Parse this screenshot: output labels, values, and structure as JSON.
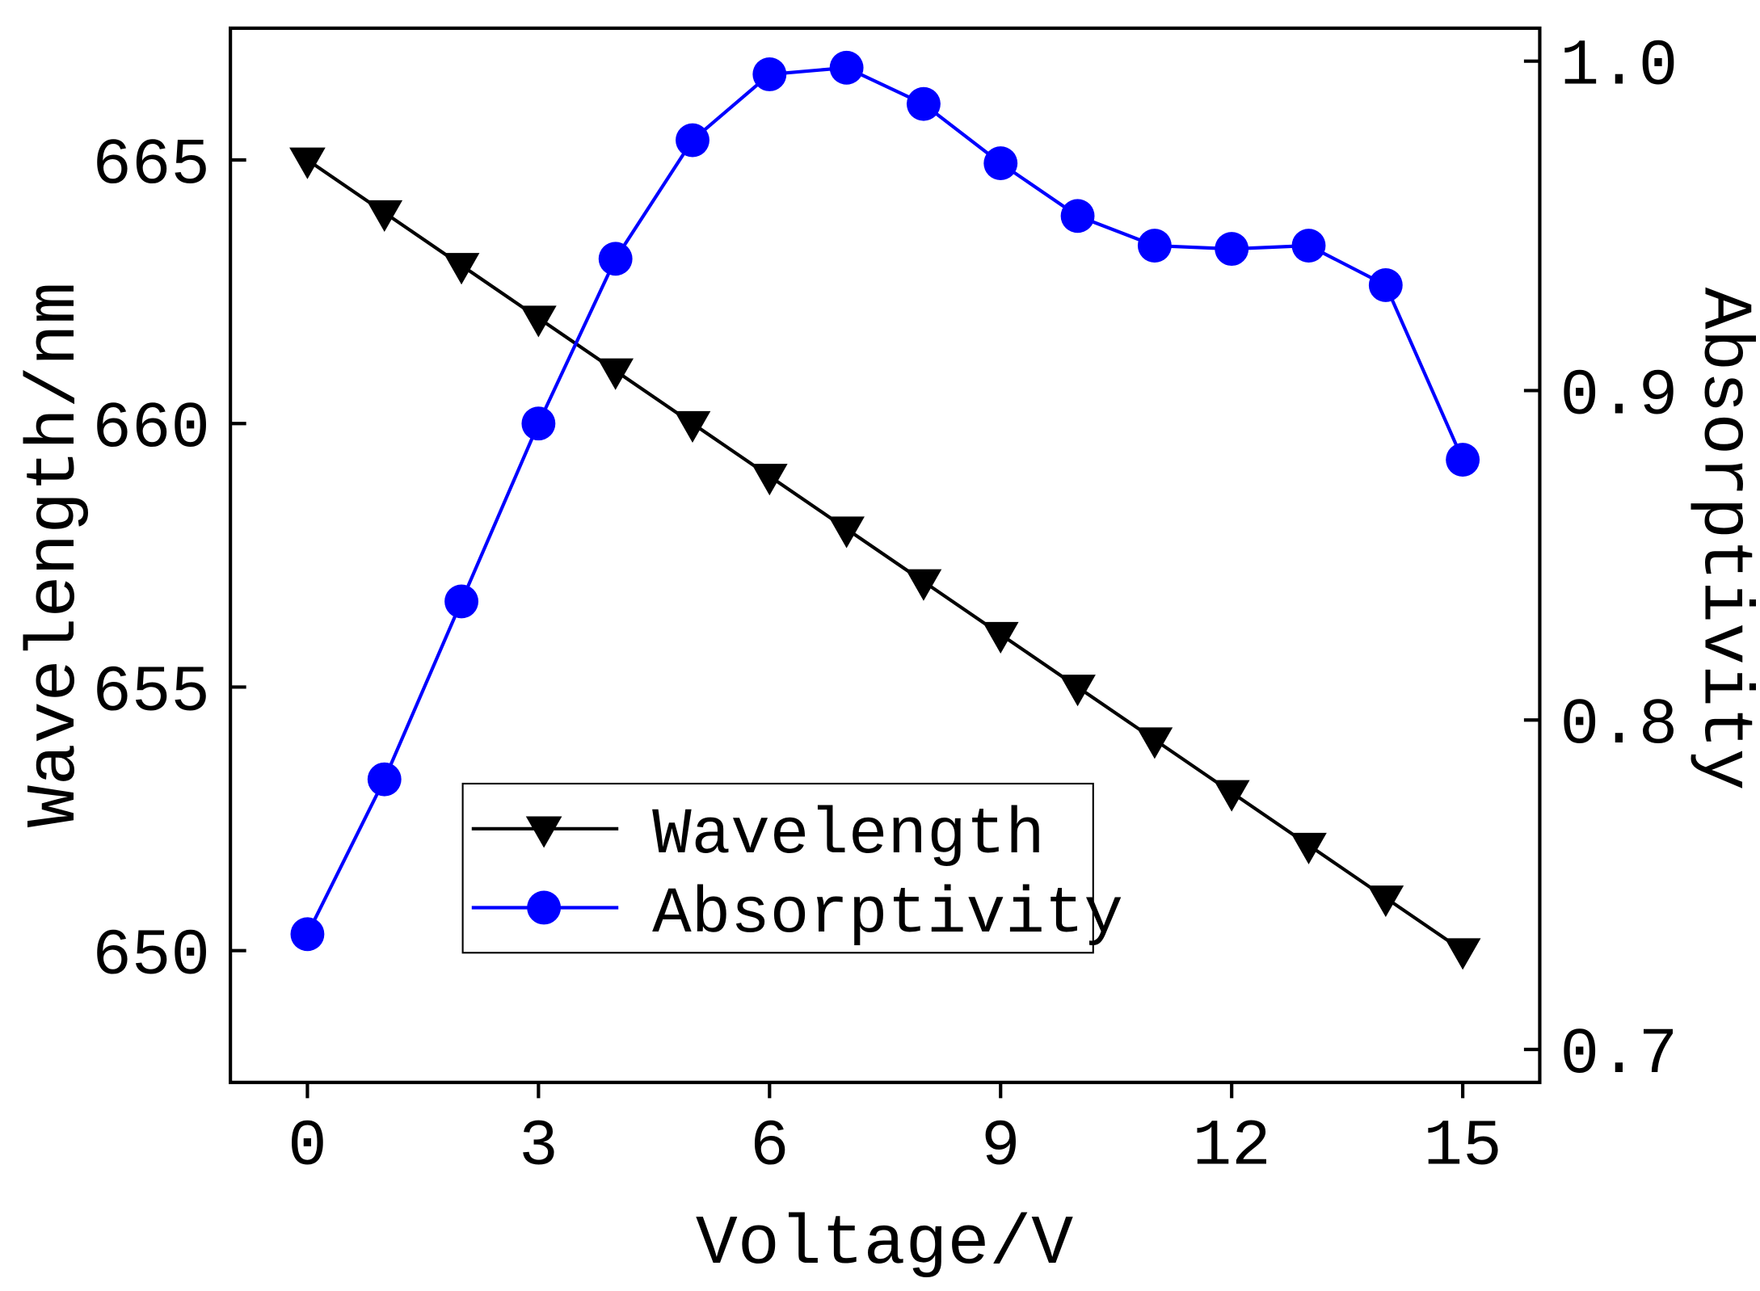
{
  "chart_data": {
    "type": "line",
    "title": "",
    "xlabel": "Voltage/V",
    "ylabel_left": "Wavelength/nm",
    "ylabel_right": "Absorptivity",
    "xlim": [
      -1,
      16
    ],
    "ylim_left": [
      647.5,
      667.5
    ],
    "ylim_right": [
      0.69,
      1.01
    ],
    "x_ticks": [
      0,
      3,
      6,
      9,
      12,
      15
    ],
    "y_ticks_left": [
      650,
      655,
      660,
      665
    ],
    "y_ticks_right": [
      "0.7",
      "0.8",
      "0.9",
      "1.0"
    ],
    "grid": false,
    "legend_position": "lower-center",
    "x": [
      0,
      1,
      2,
      3,
      4,
      5,
      6,
      7,
      8,
      9,
      10,
      11,
      12,
      13,
      14,
      15
    ],
    "series": [
      {
        "name": "Wavelength",
        "axis": "left",
        "color": "#000000",
        "marker": "triangle-down",
        "values": [
          665,
          664,
          663,
          662,
          661,
          660,
          659,
          658,
          657,
          656,
          655,
          654,
          653,
          652,
          651,
          650
        ]
      },
      {
        "name": "Absorptivity",
        "axis": "right",
        "color": "#0000ff",
        "marker": "circle",
        "values": [
          0.735,
          0.782,
          0.836,
          0.89,
          0.94,
          0.976,
          0.996,
          0.998,
          0.987,
          0.969,
          0.953,
          0.944,
          0.943,
          0.944,
          0.932,
          0.879
        ]
      }
    ]
  }
}
